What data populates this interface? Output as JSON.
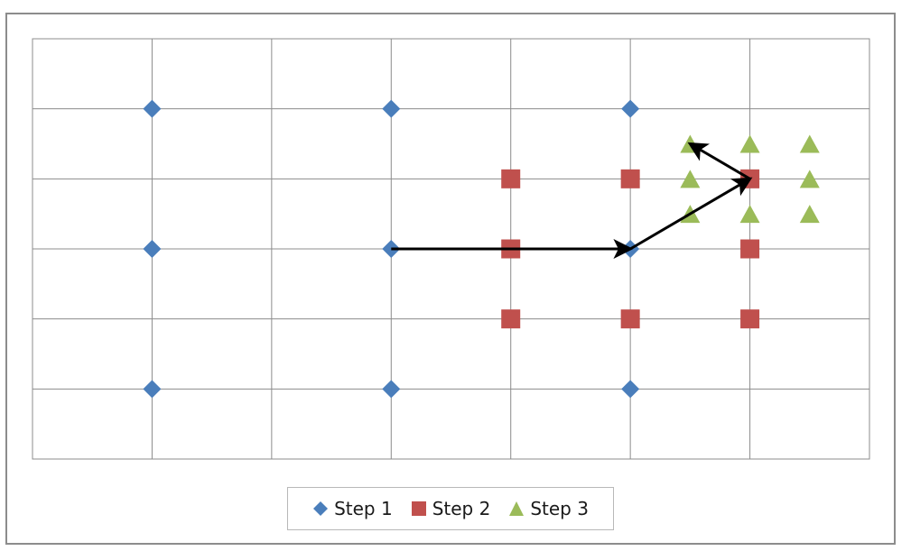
{
  "chart_data": {
    "type": "scatter",
    "title": "",
    "xlabel": "",
    "ylabel": "",
    "xlim": [
      0,
      7
    ],
    "ylim": [
      0,
      6
    ],
    "grid": true,
    "legend_position": "bottom",
    "series": [
      {
        "name": "Step 1",
        "marker": "diamond",
        "color": "#4a7ebb",
        "points": [
          [
            1,
            5
          ],
          [
            3,
            5
          ],
          [
            5,
            5
          ],
          [
            1,
            3
          ],
          [
            3,
            3
          ],
          [
            5,
            3
          ],
          [
            1,
            1
          ],
          [
            3,
            1
          ],
          [
            5,
            1
          ]
        ]
      },
      {
        "name": "Step 2",
        "marker": "square",
        "color": "#c0504d",
        "points": [
          [
            4,
            4
          ],
          [
            5,
            4
          ],
          [
            6,
            4
          ],
          [
            4,
            3
          ],
          [
            6,
            3
          ],
          [
            4,
            2
          ],
          [
            5,
            2
          ],
          [
            6,
            2
          ]
        ]
      },
      {
        "name": "Step 3",
        "marker": "triangle",
        "color": "#9bbb59",
        "points": [
          [
            5.5,
            4.5
          ],
          [
            6,
            4.5
          ],
          [
            6.5,
            4.5
          ],
          [
            5.5,
            4
          ],
          [
            6.5,
            4
          ],
          [
            5.5,
            3.5
          ],
          [
            6,
            3.5
          ],
          [
            6.5,
            3.5
          ]
        ]
      }
    ],
    "arrows": [
      {
        "from": [
          3,
          3
        ],
        "to": [
          5,
          3
        ]
      },
      {
        "from": [
          5,
          3
        ],
        "to": [
          6,
          4
        ]
      },
      {
        "from": [
          6,
          4
        ],
        "to": [
          5.5,
          4.5
        ]
      }
    ]
  }
}
